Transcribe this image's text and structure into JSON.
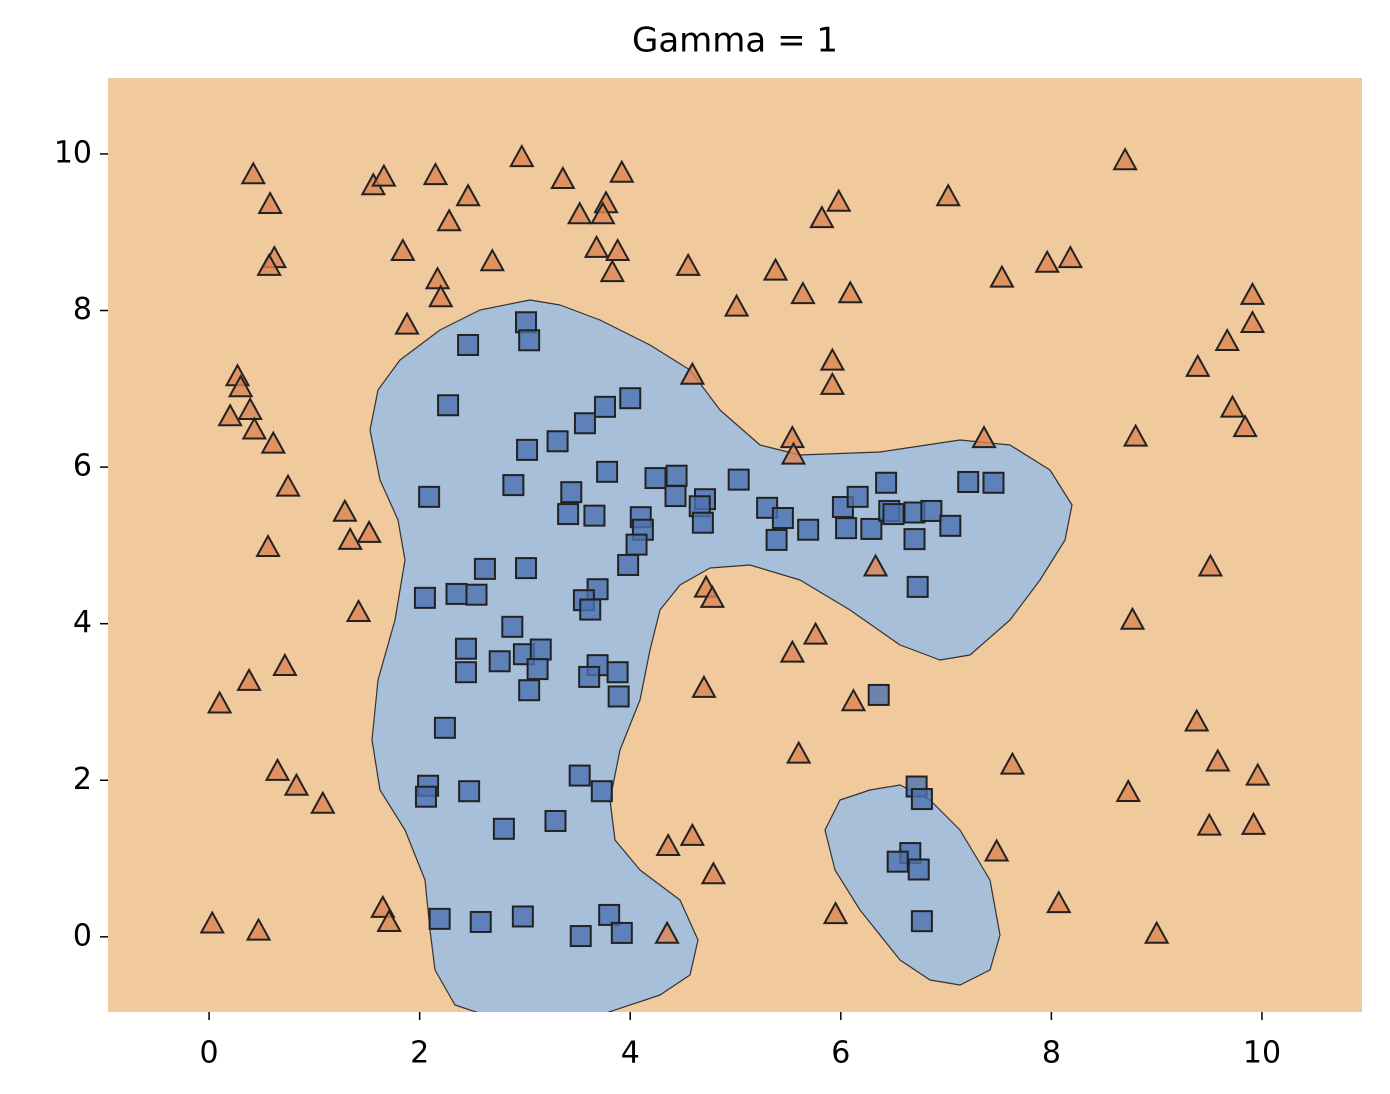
{
  "chart_data": {
    "type": "scatter",
    "title": "Gamma = 1",
    "xlim": [
      -0.96,
      10.95
    ],
    "ylim": [
      -0.96,
      10.97
    ],
    "xticks": [
      0,
      2,
      4,
      6,
      8,
      10
    ],
    "yticks": [
      0,
      2,
      4,
      6,
      8,
      10
    ],
    "grid": false,
    "series": [
      {
        "color": "#4c72b0",
        "marker": "square",
        "x": [
          3.01,
          3.04,
          2.46,
          2.27,
          4.0,
          3.76,
          3.57,
          3.31,
          3.02,
          3.78,
          2.09,
          2.89,
          3.44,
          3.41,
          3.66,
          4.24,
          4.44,
          4.43,
          4.71,
          4.66,
          4.69,
          5.03,
          4.1,
          4.12,
          4.06,
          3.98,
          5.3,
          5.45,
          5.39,
          5.69,
          6.02,
          6.16,
          6.05,
          6.29,
          6.43,
          6.46,
          6.5,
          6.7,
          6.86,
          7.04,
          6.7,
          7.21,
          7.45,
          6.73,
          2.62,
          3.01,
          2.05,
          2.35,
          2.54,
          3.69,
          3.56,
          3.62,
          2.88,
          2.44,
          2.44,
          2.76,
          2.99,
          3.15,
          3.12,
          3.04,
          3.69,
          3.61,
          3.88,
          3.89,
          6.36,
          2.24,
          2.08,
          2.06,
          2.47,
          3.52,
          3.73,
          2.8,
          3.29,
          6.72,
          6.77,
          6.66,
          6.54,
          6.74,
          6.77,
          2.19,
          2.58,
          2.98,
          3.53,
          3.8,
          3.92
        ],
        "values": [
          7.85,
          7.62,
          7.56,
          6.79,
          6.88,
          6.77,
          6.56,
          6.33,
          6.22,
          5.94,
          5.62,
          5.77,
          5.68,
          5.4,
          5.38,
          5.86,
          5.89,
          5.63,
          5.59,
          5.5,
          5.29,
          5.84,
          5.36,
          5.2,
          5.01,
          4.75,
          5.48,
          5.35,
          5.07,
          5.2,
          5.49,
          5.62,
          5.22,
          5.21,
          5.8,
          5.44,
          5.4,
          5.42,
          5.44,
          5.25,
          5.08,
          5.81,
          5.8,
          4.47,
          4.7,
          4.71,
          4.33,
          4.38,
          4.37,
          4.44,
          4.3,
          4.18,
          3.96,
          3.68,
          3.38,
          3.52,
          3.61,
          3.67,
          3.42,
          3.15,
          3.47,
          3.32,
          3.38,
          3.07,
          3.09,
          2.67,
          1.93,
          1.79,
          1.86,
          2.06,
          1.86,
          1.38,
          1.48,
          1.92,
          1.76,
          1.07,
          0.96,
          0.86,
          0.2,
          0.23,
          0.19,
          0.26,
          0.01,
          0.28,
          0.05
        ]
      },
      {
        "color": "#dd8452",
        "marker": "triangle",
        "x": [
          0.42,
          0.58,
          0.62,
          0.57,
          1.56,
          1.66,
          2.15,
          2.46,
          2.28,
          1.84,
          2.17,
          2.2,
          1.88,
          2.69,
          2.97,
          3.36,
          3.77,
          3.92,
          3.52,
          3.74,
          3.68,
          3.88,
          3.83,
          4.55,
          5.01,
          5.38,
          5.64,
          5.82,
          5.98,
          6.09,
          5.92,
          5.92,
          4.59,
          7.02,
          7.53,
          7.96,
          8.18,
          8.7,
          9.91,
          9.91,
          9.67,
          9.39,
          9.72,
          9.84,
          8.8,
          7.36,
          5.54,
          5.55,
          0.27,
          0.3,
          0.39,
          0.2,
          0.43,
          0.61,
          0.75,
          0.56,
          1.29,
          1.34,
          1.52,
          1.42,
          0.72,
          0.38,
          0.1,
          0.65,
          0.83,
          1.08,
          0.03,
          0.47,
          1.65,
          1.71,
          4.72,
          4.78,
          4.7,
          5.76,
          5.54,
          6.33,
          6.12,
          5.6,
          4.36,
          4.59,
          4.79,
          4.35,
          5.95,
          7.48,
          7.63,
          8.07,
          8.77,
          8.73,
          9.0,
          9.38,
          9.58,
          9.51,
          9.5,
          9.92,
          9.96
        ],
        "values": [
          9.74,
          9.36,
          8.67,
          8.57,
          9.6,
          9.71,
          9.73,
          9.46,
          9.14,
          8.76,
          8.4,
          8.17,
          7.82,
          8.63,
          9.96,
          9.68,
          9.37,
          9.76,
          9.23,
          9.23,
          8.8,
          8.76,
          8.49,
          8.57,
          8.05,
          8.51,
          8.21,
          9.18,
          9.39,
          8.22,
          7.36,
          7.05,
          7.18,
          9.46,
          8.42,
          8.61,
          8.67,
          9.92,
          8.2,
          7.84,
          7.61,
          7.28,
          6.76,
          6.51,
          6.39,
          6.37,
          6.37,
          6.16,
          7.16,
          7.02,
          6.73,
          6.65,
          6.48,
          6.3,
          5.75,
          4.98,
          5.43,
          5.07,
          5.16,
          4.15,
          3.46,
          3.27,
          2.98,
          2.12,
          1.93,
          1.7,
          0.17,
          0.08,
          0.37,
          0.19,
          4.46,
          4.33,
          3.18,
          3.86,
          3.63,
          4.73,
          3.01,
          2.34,
          1.16,
          1.29,
          0.8,
          0.04,
          0.29,
          1.09,
          2.2,
          0.43,
          4.05,
          1.85,
          0.04,
          2.75,
          2.24,
          4.73,
          1.42,
          1.43,
          2.06
        ]
      }
    ]
  }
}
